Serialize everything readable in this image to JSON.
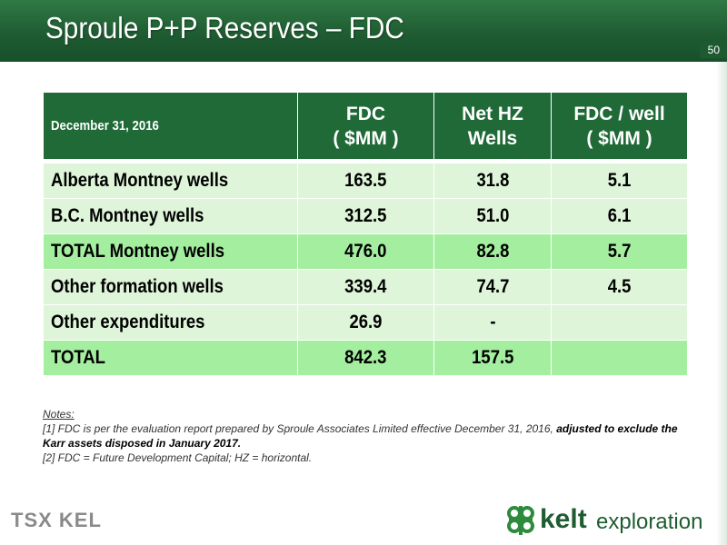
{
  "header": {
    "title": "Sproule P+P Reserves – FDC",
    "page_number": "50"
  },
  "table": {
    "header": {
      "first": "December 31, 2016",
      "col1": [
        "FDC",
        "( $MM )"
      ],
      "col2": [
        "Net HZ",
        "Wells"
      ],
      "col3": [
        "FDC / well",
        "( $MM )"
      ]
    },
    "rows": [
      {
        "label": "Alberta Montney wells",
        "fdc": "163.5",
        "wells": "31.8",
        "per_well": "5.1"
      },
      {
        "label": "B.C. Montney wells",
        "fdc": "312.5",
        "wells": "51.0",
        "per_well": "6.1"
      },
      {
        "label": "TOTAL Montney wells",
        "fdc": "476.0",
        "wells": "82.8",
        "per_well": "5.7"
      },
      {
        "label": "Other formation wells",
        "fdc": "339.4",
        "wells": "74.7",
        "per_well": "4.5"
      },
      {
        "label": "Other expenditures",
        "fdc": "26.9",
        "wells": "-",
        "per_well": ""
      },
      {
        "label": "TOTAL",
        "fdc": "842.3",
        "wells": "157.5",
        "per_well": ""
      }
    ]
  },
  "notes": {
    "title": "Notes:",
    "note1_plain": "[1] FDC is per the evaluation report prepared by Sproule Associates Limited effective December 31, 2016, ",
    "note1_bold": "adjusted to exclude the Karr assets disposed in January 2017.",
    "note2": "[2] FDC = Future Development Capital; HZ = horizontal."
  },
  "footer": {
    "tsx_logo": "TSX KEL",
    "kelt_word": "kelt",
    "kelt_exploration": "exploration"
  },
  "colors": {
    "header_green": "#1f6a37",
    "row_light": "#dff5d9",
    "row_bright": "#a4ee9f"
  }
}
